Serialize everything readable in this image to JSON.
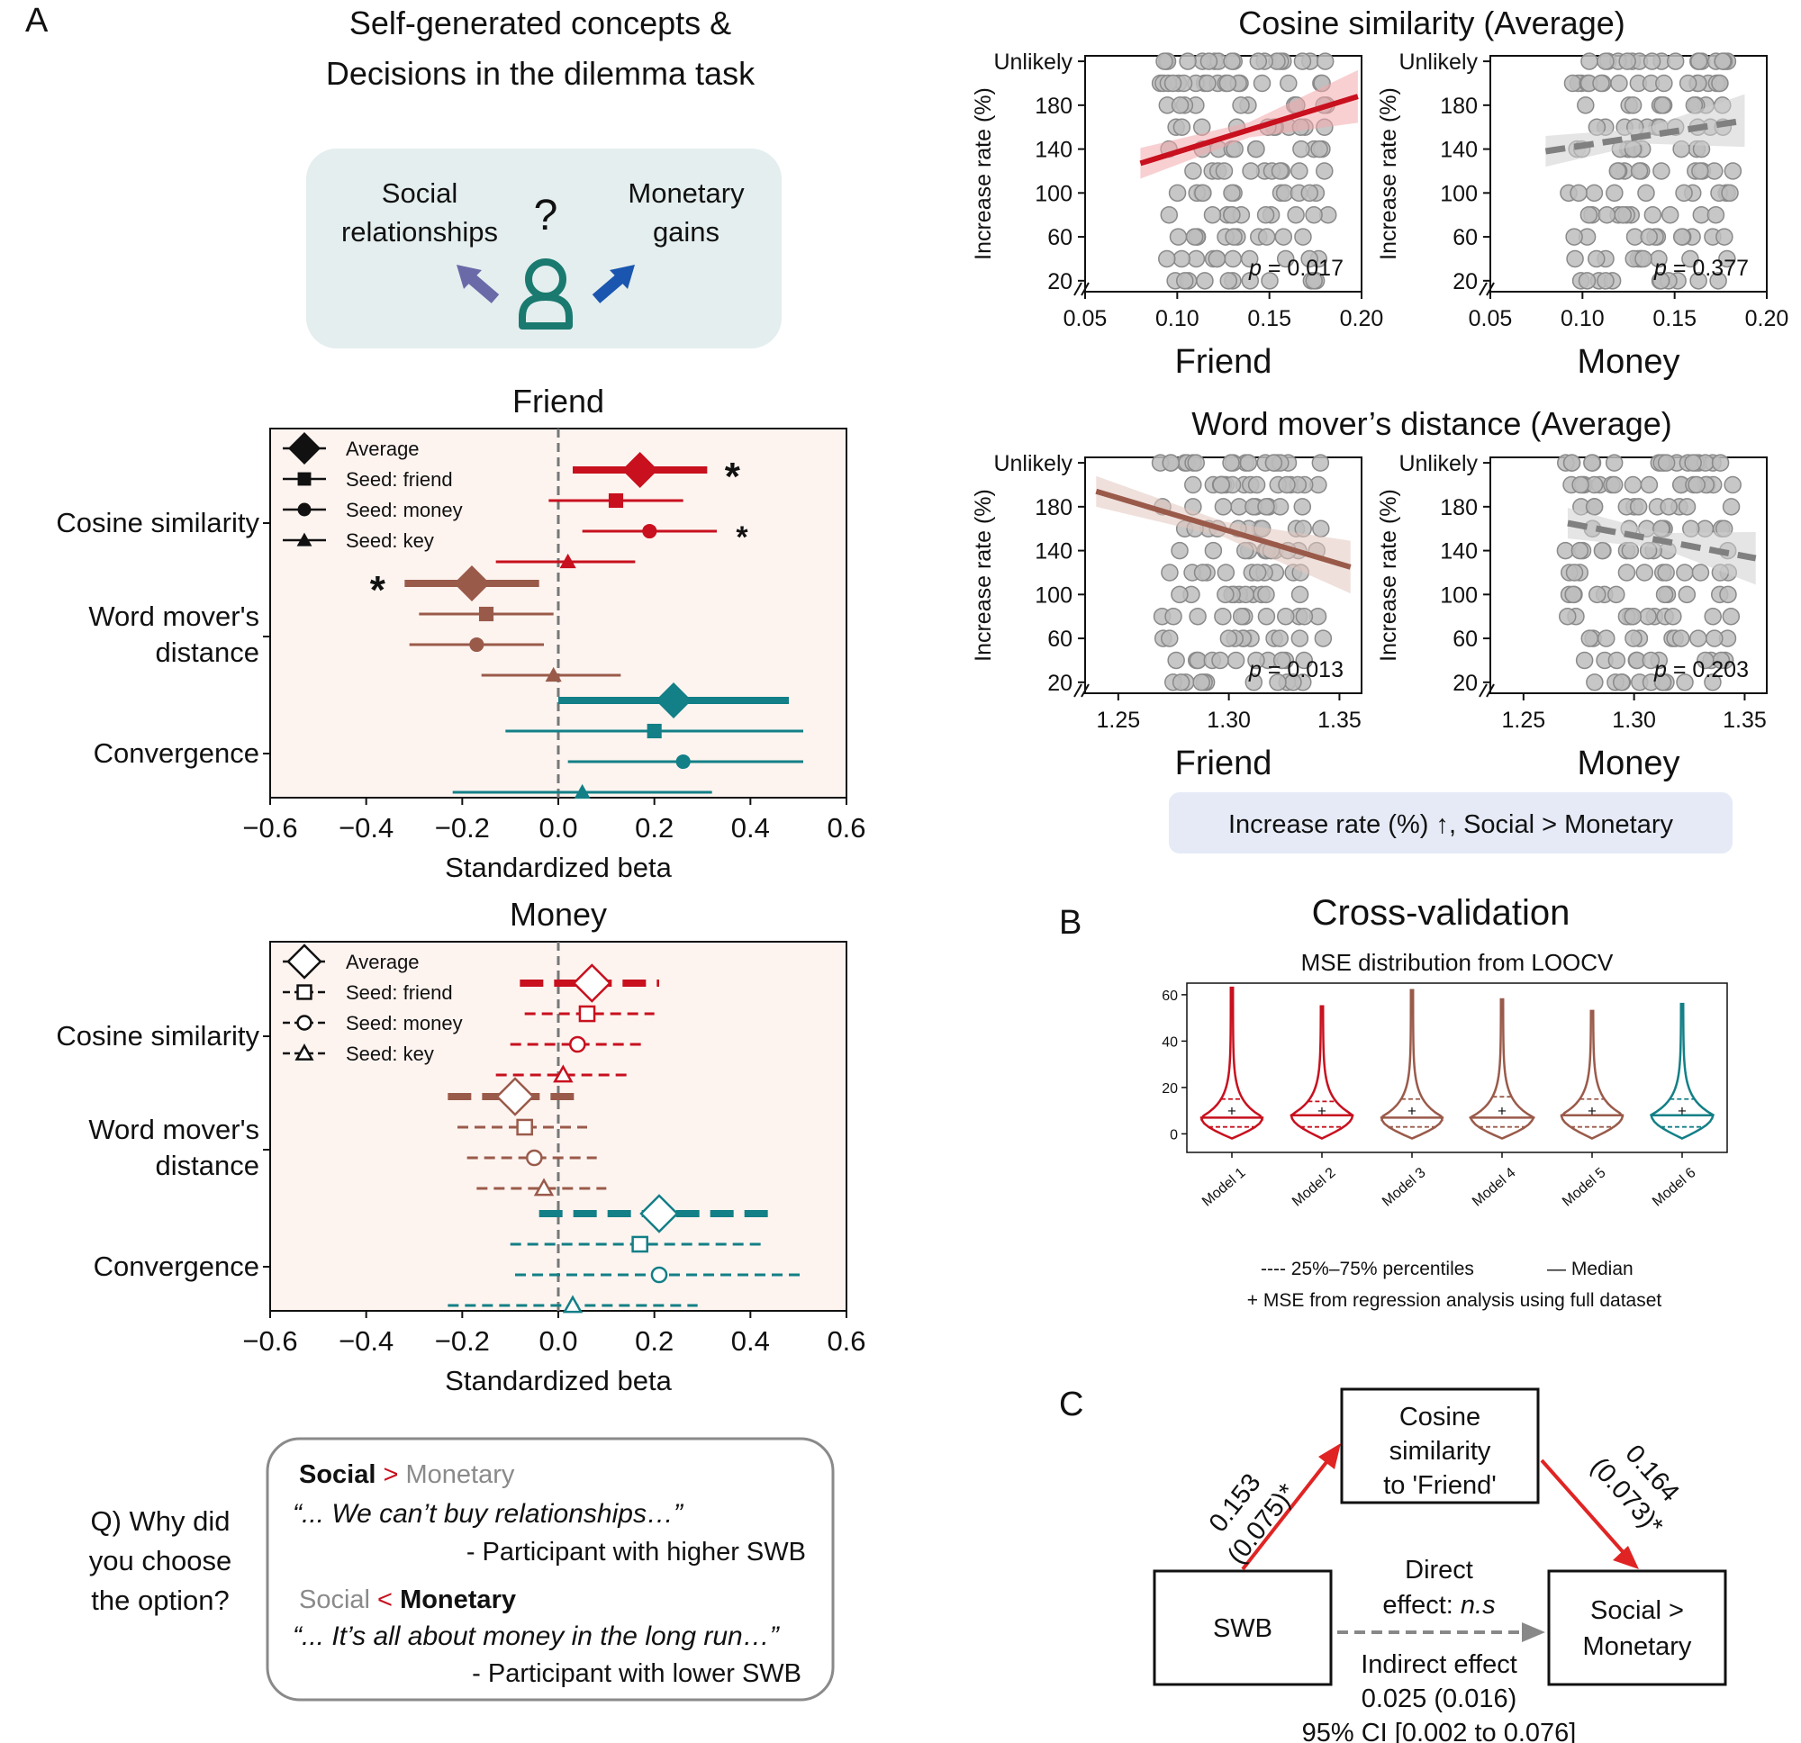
{
  "panels": {
    "a": {
      "letter": "A",
      "title_line1": "Self-generated concepts &",
      "title_line2": "Decisions in the dilemma task",
      "dilemma": {
        "left_line1": "Social",
        "left_line2": "relationships",
        "q": "?",
        "right_line1": "Monetary",
        "right_line2": "gains",
        "left_arrow_color": "#6a6aa8",
        "right_arrow_color": "#1a56b0",
        "person_color": "#1a7a70"
      }
    },
    "b": {
      "letter": "B",
      "title": "Cross-validation"
    },
    "c": {
      "letter": "C"
    }
  },
  "colors": {
    "cosine": "#c8101e",
    "wmd": "#9a5a4a",
    "convergence": "#137f86",
    "gray": "#888888",
    "panel_bg": "#fdf4f0"
  },
  "chart_data": [
    {
      "id": "forest-friend",
      "type": "forest",
      "title": "Friend",
      "xlabel": "Standardized beta",
      "xlim": [
        -0.6,
        0.6
      ],
      "xticks": [
        "−0.6",
        "−0.4",
        "−0.2",
        "0.0",
        "0.2",
        "0.4",
        "0.6"
      ],
      "xtick_values": [
        -0.6,
        -0.4,
        -0.2,
        0.0,
        0.2,
        0.4,
        0.6
      ],
      "dashed": false,
      "legend": [
        "Average",
        "Seed: friend",
        "Seed: money",
        "Seed: key"
      ],
      "groups": [
        {
          "label_line1": "Cosine similarity",
          "label_line2": "",
          "color": "#c8101e",
          "rows": [
            {
              "marker": "diamond",
              "est": 0.17,
              "lo": 0.03,
              "hi": 0.31,
              "sig": "*"
            },
            {
              "marker": "square",
              "est": 0.12,
              "lo": -0.02,
              "hi": 0.26,
              "sig": ""
            },
            {
              "marker": "circle",
              "est": 0.19,
              "lo": 0.05,
              "hi": 0.33,
              "sig": "*"
            },
            {
              "marker": "triangle",
              "est": 0.02,
              "lo": -0.13,
              "hi": 0.16,
              "sig": ""
            }
          ]
        },
        {
          "label_line1": "Word mover's",
          "label_line2": "distance",
          "color": "#9a5a4a",
          "rows": [
            {
              "marker": "diamond",
              "est": -0.18,
              "lo": -0.32,
              "hi": -0.04,
              "sig": "*"
            },
            {
              "marker": "square",
              "est": -0.15,
              "lo": -0.29,
              "hi": -0.01,
              "sig": ""
            },
            {
              "marker": "circle",
              "est": -0.17,
              "lo": -0.31,
              "hi": -0.03,
              "sig": ""
            },
            {
              "marker": "triangle",
              "est": -0.01,
              "lo": -0.16,
              "hi": 0.13,
              "sig": ""
            }
          ]
        },
        {
          "label_line1": "Convergence",
          "label_line2": "",
          "color": "#137f86",
          "rows": [
            {
              "marker": "diamond",
              "est": 0.24,
              "lo": 0.0,
              "hi": 0.48,
              "sig": ""
            },
            {
              "marker": "square",
              "est": 0.2,
              "lo": -0.11,
              "hi": 0.51,
              "sig": ""
            },
            {
              "marker": "circle",
              "est": 0.26,
              "lo": 0.02,
              "hi": 0.51,
              "sig": ""
            },
            {
              "marker": "triangle",
              "est": 0.05,
              "lo": -0.22,
              "hi": 0.32,
              "sig": ""
            }
          ]
        }
      ]
    },
    {
      "id": "forest-money",
      "type": "forest",
      "title": "Money",
      "xlabel": "Standardized beta",
      "xlim": [
        -0.6,
        0.6
      ],
      "xticks": [
        "−0.6",
        "−0.4",
        "−0.2",
        "0.0",
        "0.2",
        "0.4",
        "0.6"
      ],
      "xtick_values": [
        -0.6,
        -0.4,
        -0.2,
        0.0,
        0.2,
        0.4,
        0.6
      ],
      "dashed": true,
      "legend": [
        "Average",
        "Seed: friend",
        "Seed: money",
        "Seed: key"
      ],
      "groups": [
        {
          "label_line1": "Cosine similarity",
          "label_line2": "",
          "color": "#c8101e",
          "rows": [
            {
              "marker": "diamond",
              "est": 0.07,
              "lo": -0.08,
              "hi": 0.21,
              "sig": ""
            },
            {
              "marker": "square",
              "est": 0.06,
              "lo": -0.07,
              "hi": 0.2,
              "sig": ""
            },
            {
              "marker": "circle",
              "est": 0.04,
              "lo": -0.1,
              "hi": 0.18,
              "sig": ""
            },
            {
              "marker": "triangle",
              "est": 0.01,
              "lo": -0.13,
              "hi": 0.15,
              "sig": ""
            }
          ]
        },
        {
          "label_line1": "Word mover's",
          "label_line2": "distance",
          "color": "#9a5a4a",
          "rows": [
            {
              "marker": "diamond",
              "est": -0.09,
              "lo": -0.23,
              "hi": 0.05,
              "sig": ""
            },
            {
              "marker": "square",
              "est": -0.07,
              "lo": -0.21,
              "hi": 0.06,
              "sig": ""
            },
            {
              "marker": "circle",
              "est": -0.05,
              "lo": -0.19,
              "hi": 0.08,
              "sig": ""
            },
            {
              "marker": "triangle",
              "est": -0.03,
              "lo": -0.17,
              "hi": 0.1,
              "sig": ""
            }
          ]
        },
        {
          "label_line1": "Convergence",
          "label_line2": "",
          "color": "#137f86",
          "rows": [
            {
              "marker": "diamond",
              "est": 0.21,
              "lo": -0.04,
              "hi": 0.45,
              "sig": ""
            },
            {
              "marker": "square",
              "est": 0.17,
              "lo": -0.1,
              "hi": 0.43,
              "sig": ""
            },
            {
              "marker": "circle",
              "est": 0.21,
              "lo": -0.09,
              "hi": 0.51,
              "sig": ""
            },
            {
              "marker": "triangle",
              "est": 0.03,
              "lo": -0.23,
              "hi": 0.29,
              "sig": ""
            }
          ]
        }
      ]
    },
    {
      "id": "scatter-group",
      "type": "scatter",
      "ylabel": "Increase rate (%)",
      "yticks": [
        "20",
        "60",
        "100",
        "140",
        "180",
        "Unlikely"
      ],
      "ytick_values": [
        20,
        60,
        100,
        140,
        180,
        220
      ],
      "ylim": [
        10,
        225
      ],
      "blocks": [
        {
          "title": "Cosine similarity (Average)",
          "xlim": [
            0.05,
            0.2
          ],
          "xticks": [
            "0.05",
            "0.10",
            "0.15",
            "0.20"
          ],
          "xtick_values": [
            0.05,
            0.1,
            0.15,
            0.2
          ],
          "plots": [
            {
              "xlabel": "Friend",
              "p_label": "p",
              "p_value": " = 0.017",
              "fit": [
                [
                  0.08,
                  127
                ],
                [
                  0.198,
                  188
                ]
              ],
              "line_color": "#c8101e",
              "dashed": false
            },
            {
              "xlabel": "Money",
              "p_label": "p",
              "p_value": " = 0.377",
              "fit": [
                [
                  0.08,
                  138
                ],
                [
                  0.188,
                  166
                ]
              ],
              "line_color": "#808080",
              "dashed": true
            }
          ]
        },
        {
          "title": "Word mover’s distance (Average)",
          "xlim": [
            1.235,
            1.36
          ],
          "xticks": [
            "1.25",
            "1.30",
            "1.35"
          ],
          "xtick_values": [
            1.25,
            1.3,
            1.35
          ],
          "plots": [
            {
              "xlabel": "Friend",
              "p_label": "p",
              "p_value": " = 0.013",
              "fit": [
                [
                  1.24,
                  194
                ],
                [
                  1.355,
                  125
                ]
              ],
              "line_color": "#9a5a4a",
              "dashed": false
            },
            {
              "xlabel": "Money",
              "p_label": "p",
              "p_value": " = 0.203",
              "fit": [
                [
                  1.27,
                  165
                ],
                [
                  1.355,
                  133
                ]
              ],
              "line_color": "#808080",
              "dashed": true
            }
          ]
        }
      ]
    },
    {
      "id": "violin-loocv",
      "type": "violin",
      "title": "MSE distribution from LOOCV",
      "yticks": [
        "0",
        "20",
        "40",
        "60"
      ],
      "ytick_values": [
        0,
        20,
        40,
        60
      ],
      "ylim": [
        -8,
        65
      ],
      "models": [
        {
          "name": "Model 1",
          "color": "#c8101e",
          "median": 7,
          "q1": 3,
          "q3": 15,
          "mean": 10,
          "max": 63
        },
        {
          "name": "Model 2",
          "color": "#c8101e",
          "median": 8,
          "q1": 3,
          "q3": 14,
          "mean": 10,
          "max": 55
        },
        {
          "name": "Model 3",
          "color": "#9a5a4a",
          "median": 7,
          "q1": 3,
          "q3": 15,
          "mean": 10,
          "max": 62
        },
        {
          "name": "Model 4",
          "color": "#9a5a4a",
          "median": 7,
          "q1": 3,
          "q3": 16,
          "mean": 10,
          "max": 58
        },
        {
          "name": "Model 5",
          "color": "#9a5a4a",
          "median": 8,
          "q1": 3,
          "q3": 15,
          "mean": 10,
          "max": 53
        },
        {
          "name": "Model 6",
          "color": "#137f86",
          "median": 8,
          "q1": 3,
          "q3": 15,
          "mean": 10,
          "max": 56
        }
      ],
      "legend_line1_a": "---- 25%–75% percentiles",
      "legend_line1_b": "— Median",
      "legend_line2": "+ MSE from regression analysis using full dataset"
    }
  ],
  "note_box": {
    "text": "Increase rate (%) ↑, Social > Monetary"
  },
  "quote_box": {
    "question_line1": "Q) Why did",
    "question_line2": "you choose",
    "question_line3": "the option?",
    "q1_social": "Social",
    "q1_op": " > ",
    "q1_monetary": "Monetary",
    "quote1": "“... We can’t buy relationships…”",
    "who1": "- Participant with higher SWB",
    "q2_social": "Social",
    "q2_op": " < ",
    "q2_monetary": "Monetary",
    "quote2": "“... It’s all about money in the long run…”",
    "who2": "- Participant with lower SWB",
    "quote1_color": "#6a6aa8",
    "quote2_color": "#1a4f9c"
  },
  "mediation": {
    "mediator_line1": "Cosine",
    "mediator_line2": "similarity",
    "mediator_line3": "to 'Friend'",
    "x_label": "SWB",
    "y_line1": "Social >",
    "y_line2": "Monetary",
    "a_line1": "0.153",
    "a_line2": "(0.075)*",
    "b_line1": "0.164",
    "b_line2": "(0.073)*",
    "direct_line1": "Direct",
    "direct_line2": "effect: ",
    "direct_ns": "n.s",
    "indirect_line1": "Indirect effect",
    "indirect_line2": "0.025 (0.016)",
    "indirect_line3": "95% CI [0.002 to 0.076]"
  }
}
